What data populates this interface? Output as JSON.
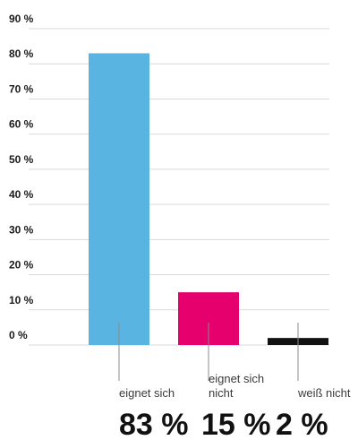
{
  "chart_data": {
    "type": "bar",
    "categories": [
      [
        "eignet sich"
      ],
      [
        "eignet sich",
        "nicht"
      ],
      [
        "weiß nicht"
      ]
    ],
    "values": [
      83,
      15,
      2
    ],
    "value_labels": [
      "83 %",
      "15 %",
      "2 %"
    ],
    "colors": [
      "#5ab4e1",
      "#e5006d",
      "#111111"
    ],
    "yticks": [
      "0 %",
      "10 %",
      "20 %",
      "30 %",
      "40 %",
      "50 %",
      "60 %",
      "70 %",
      "80 %",
      "90 %"
    ],
    "ylim": [
      0,
      90
    ],
    "grid": true,
    "legend": "none"
  }
}
